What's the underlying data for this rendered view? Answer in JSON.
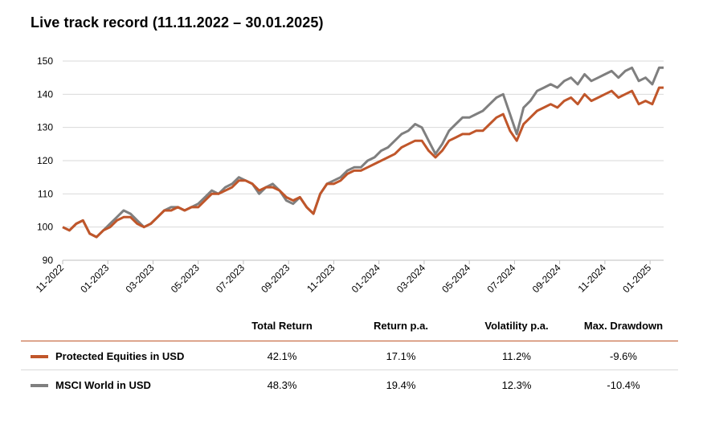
{
  "chart_data": {
    "type": "line",
    "title": "Live track record (11.11.2022 – 30.01.2025)",
    "xlabel": "",
    "ylabel": "",
    "ylim": [
      90,
      150
    ],
    "yticks": [
      90,
      100,
      110,
      120,
      130,
      140,
      150
    ],
    "x_range_months": [
      0,
      26.6
    ],
    "xtick_labels": [
      "11-2022",
      "01-2023",
      "03-2023",
      "05-2023",
      "07-2023",
      "09-2023",
      "11-2023",
      "01-2024",
      "03-2024",
      "05-2024",
      "07-2024",
      "09-2024",
      "11-2024",
      "01-2025"
    ],
    "xtick_months": [
      0,
      2,
      4,
      6,
      8,
      10,
      12,
      14,
      16,
      18,
      20,
      22,
      24,
      26
    ],
    "grid": true,
    "series": [
      {
        "name": "MSCI World in USD",
        "color": "#7f7f7f",
        "x": [
          0,
          0.3,
          0.6,
          0.9,
          1.2,
          1.5,
          1.8,
          2.1,
          2.4,
          2.7,
          3.0,
          3.3,
          3.6,
          3.9,
          4.2,
          4.5,
          4.8,
          5.1,
          5.4,
          5.7,
          6.0,
          6.3,
          6.6,
          6.9,
          7.2,
          7.5,
          7.8,
          8.1,
          8.4,
          8.7,
          9.0,
          9.3,
          9.6,
          9.9,
          10.2,
          10.5,
          10.8,
          11.1,
          11.4,
          11.7,
          12.0,
          12.3,
          12.6,
          12.9,
          13.2,
          13.5,
          13.8,
          14.1,
          14.4,
          14.7,
          15.0,
          15.3,
          15.6,
          15.9,
          16.2,
          16.5,
          16.8,
          17.1,
          17.4,
          17.7,
          18.0,
          18.3,
          18.6,
          18.9,
          19.2,
          19.5,
          19.8,
          20.1,
          20.4,
          20.7,
          21.0,
          21.3,
          21.6,
          21.9,
          22.2,
          22.5,
          22.8,
          23.1,
          23.4,
          23.7,
          24.0,
          24.3,
          24.6,
          24.9,
          25.2,
          25.5,
          25.8,
          26.1,
          26.4,
          26.6
        ],
        "values": [
          100,
          99,
          101,
          102,
          98,
          97,
          99,
          101,
          103,
          105,
          104,
          102,
          100,
          101,
          103,
          105,
          106,
          106,
          105,
          106,
          107,
          109,
          111,
          110,
          112,
          113,
          115,
          114,
          113,
          110,
          112,
          113,
          111,
          108,
          107,
          109,
          106,
          104,
          110,
          113,
          114,
          115,
          117,
          118,
          118,
          120,
          121,
          123,
          124,
          126,
          128,
          129,
          131,
          130,
          126,
          122,
          125,
          129,
          131,
          133,
          133,
          134,
          135,
          137,
          139,
          140,
          134,
          128,
          136,
          138,
          141,
          142,
          143,
          142,
          144,
          145,
          143,
          146,
          144,
          145,
          146,
          147,
          145,
          147,
          148,
          144,
          145,
          143,
          148,
          148
        ]
      },
      {
        "name": "Protected Equities in USD",
        "color": "#c0562a",
        "x": [
          0,
          0.3,
          0.6,
          0.9,
          1.2,
          1.5,
          1.8,
          2.1,
          2.4,
          2.7,
          3.0,
          3.3,
          3.6,
          3.9,
          4.2,
          4.5,
          4.8,
          5.1,
          5.4,
          5.7,
          6.0,
          6.3,
          6.6,
          6.9,
          7.2,
          7.5,
          7.8,
          8.1,
          8.4,
          8.7,
          9.0,
          9.3,
          9.6,
          9.9,
          10.2,
          10.5,
          10.8,
          11.1,
          11.4,
          11.7,
          12.0,
          12.3,
          12.6,
          12.9,
          13.2,
          13.5,
          13.8,
          14.1,
          14.4,
          14.7,
          15.0,
          15.3,
          15.6,
          15.9,
          16.2,
          16.5,
          16.8,
          17.1,
          17.4,
          17.7,
          18.0,
          18.3,
          18.6,
          18.9,
          19.2,
          19.5,
          19.8,
          20.1,
          20.4,
          20.7,
          21.0,
          21.3,
          21.6,
          21.9,
          22.2,
          22.5,
          22.8,
          23.1,
          23.4,
          23.7,
          24.0,
          24.3,
          24.6,
          24.9,
          25.2,
          25.5,
          25.8,
          26.1,
          26.4,
          26.6
        ],
        "values": [
          100,
          99,
          101,
          102,
          98,
          97,
          99,
          100,
          102,
          103,
          103,
          101,
          100,
          101,
          103,
          105,
          105,
          106,
          105,
          106,
          106,
          108,
          110,
          110,
          111,
          112,
          114,
          114,
          113,
          111,
          112,
          112,
          111,
          109,
          108,
          109,
          106,
          104,
          110,
          113,
          113,
          114,
          116,
          117,
          117,
          118,
          119,
          120,
          121,
          122,
          124,
          125,
          126,
          126,
          123,
          121,
          123,
          126,
          127,
          128,
          128,
          129,
          129,
          131,
          133,
          134,
          129,
          126,
          131,
          133,
          135,
          136,
          137,
          136,
          138,
          139,
          137,
          140,
          138,
          139,
          140,
          141,
          139,
          140,
          141,
          137,
          138,
          137,
          142,
          142
        ]
      }
    ]
  },
  "stats": {
    "headers": [
      "Total Return",
      "Return p.a.",
      "Volatility p.a.",
      "Max. Drawdown"
    ],
    "rows": [
      {
        "label": "Protected Equities in USD",
        "color": "#c0562a",
        "values": [
          "42.1%",
          "17.1%",
          "11.2%",
          "-9.6%"
        ]
      },
      {
        "label": "MSCI World in USD",
        "color": "#7f7f7f",
        "values": [
          "48.3%",
          "19.4%",
          "12.3%",
          "-10.4%"
        ]
      }
    ]
  }
}
